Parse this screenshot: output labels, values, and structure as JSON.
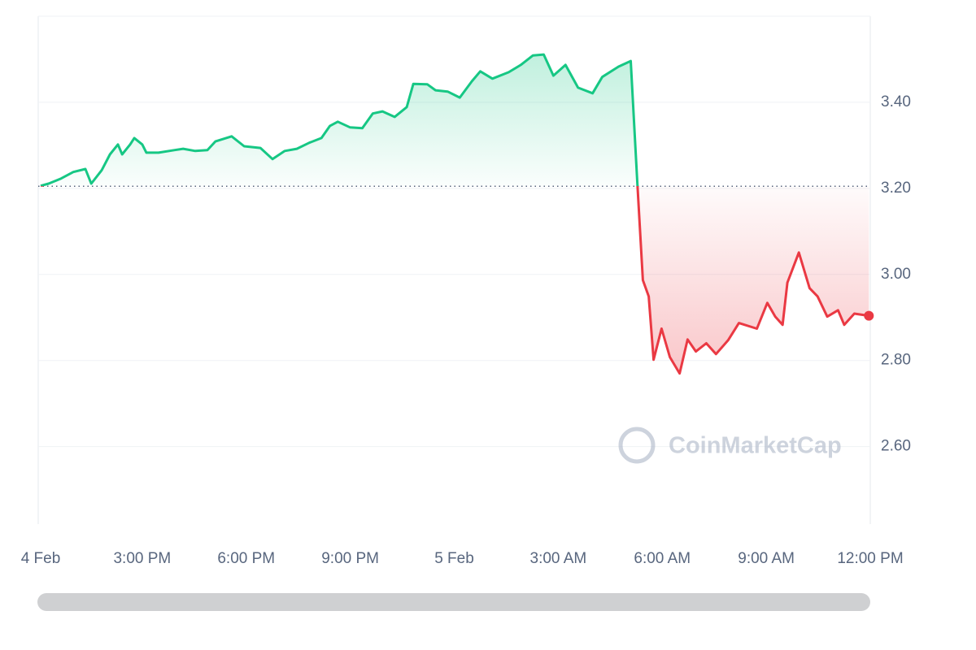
{
  "chart_data": {
    "type": "line",
    "watermark": "CoinMarketCap",
    "x": [
      0.07,
      0.3,
      0.66,
      1.01,
      1.36,
      1.53,
      1.83,
      2.07,
      2.3,
      2.42,
      2.65,
      2.77,
      3.0,
      3.12,
      3.47,
      3.94,
      4.18,
      4.53,
      4.88,
      5.11,
      5.58,
      5.94,
      6.41,
      6.76,
      7.11,
      7.46,
      7.82,
      8.17,
      8.41,
      8.64,
      8.99,
      9.35,
      9.65,
      9.93,
      10.28,
      10.63,
      10.82,
      11.22,
      11.46,
      11.81,
      12.16,
      12.51,
      12.75,
      13.1,
      13.57,
      13.92,
      14.27,
      14.58,
      14.86,
      15.21,
      15.57,
      15.99,
      16.27,
      16.74,
      17.09,
      17.28,
      17.44,
      17.61,
      17.75,
      17.98,
      18.22,
      18.5,
      18.73,
      18.97,
      19.27,
      19.55,
      19.9,
      20.21,
      20.73,
      21.03,
      21.26,
      21.47,
      21.61,
      21.94,
      22.25,
      22.48,
      22.76,
      23.07,
      23.25,
      23.54,
      23.96
    ],
    "values": [
      3.206,
      3.211,
      3.223,
      3.238,
      3.245,
      3.211,
      3.242,
      3.279,
      3.302,
      3.279,
      3.302,
      3.317,
      3.302,
      3.283,
      3.283,
      3.289,
      3.292,
      3.287,
      3.289,
      3.309,
      3.321,
      3.298,
      3.294,
      3.268,
      3.287,
      3.292,
      3.306,
      3.317,
      3.345,
      3.355,
      3.342,
      3.34,
      3.374,
      3.379,
      3.366,
      3.389,
      3.443,
      3.442,
      3.428,
      3.425,
      3.411,
      3.449,
      3.472,
      3.455,
      3.47,
      3.487,
      3.509,
      3.511,
      3.462,
      3.487,
      3.434,
      3.421,
      3.459,
      3.483,
      3.496,
      3.213,
      2.987,
      2.949,
      2.802,
      2.874,
      2.808,
      2.77,
      2.849,
      2.821,
      2.84,
      2.815,
      2.847,
      2.887,
      2.874,
      2.934,
      2.902,
      2.883,
      2.981,
      3.051,
      2.968,
      2.949,
      2.902,
      2.917,
      2.883,
      2.909,
      2.904
    ],
    "baseline": 3.205,
    "color_up": "#16c784",
    "color_down": "#ea3943",
    "xlim": [
      0,
      24
    ],
    "xticks": [
      {
        "value": 0,
        "label": "4 Feb"
      },
      {
        "value": 3,
        "label": "3:00 PM"
      },
      {
        "value": 6,
        "label": "6:00 PM"
      },
      {
        "value": 9,
        "label": "9:00 PM"
      },
      {
        "value": 12,
        "label": "5 Feb"
      },
      {
        "value": 15,
        "label": "3:00 AM"
      },
      {
        "value": 18,
        "label": "6:00 AM"
      },
      {
        "value": 21,
        "label": "9:00 AM"
      },
      {
        "value": 24,
        "label": "12:00 PM"
      }
    ],
    "ylim": [
      2.42,
      3.6
    ],
    "yticks": [
      {
        "value": 2.6,
        "label": "2.60"
      },
      {
        "value": 2.8,
        "label": "2.80"
      },
      {
        "value": 3.0,
        "label": "3.00"
      },
      {
        "value": 3.2,
        "label": "3.20"
      },
      {
        "value": 3.4,
        "label": "3.40"
      }
    ],
    "grid": true
  }
}
